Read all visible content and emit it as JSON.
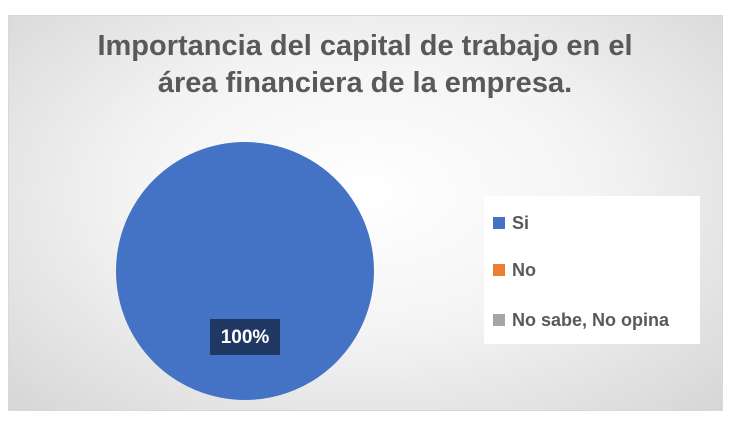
{
  "chart_data": {
    "type": "pie",
    "title": "Importancia del capital de trabajo en el área financiera de la empresa.",
    "categories": [
      "Si",
      "No",
      "No sabe, No opina"
    ],
    "values": [
      100,
      0,
      0
    ],
    "value_labels": [
      "100%",
      null,
      null
    ],
    "colors": [
      "#4472c4",
      "#ed7d31",
      "#a5a5a5"
    ],
    "legend": "right"
  }
}
